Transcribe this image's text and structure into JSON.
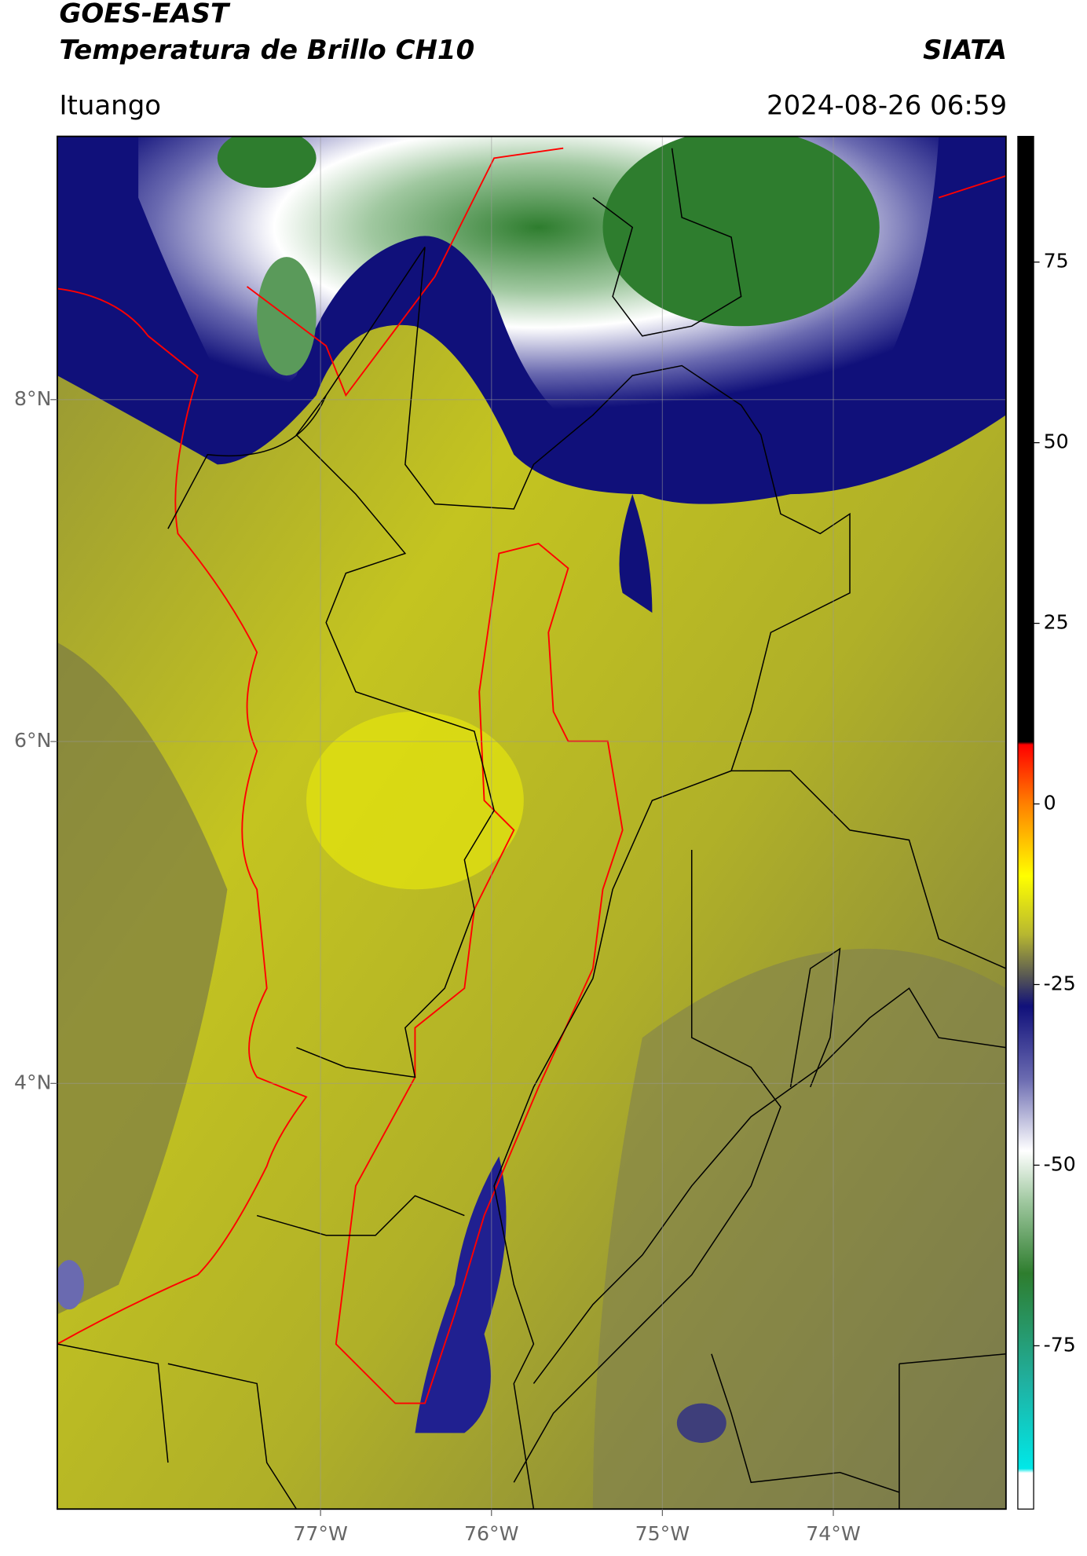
{
  "header": {
    "title": "GOES-EAST",
    "subtitle": "Temperatura de Brillo CH10",
    "source": "SIATA",
    "location": "Ituango",
    "datetime": "2024-08-26 06:59"
  },
  "map": {
    "lonlim": [
      -78.54,
      -72.99
    ],
    "latlim": [
      1.51,
      9.54
    ],
    "lonticks": [
      {
        "value": -77,
        "label": "77°W"
      },
      {
        "value": -76,
        "label": "76°W"
      },
      {
        "value": -75,
        "label": "75°W"
      },
      {
        "value": -74,
        "label": "74°W"
      }
    ],
    "latticks": [
      {
        "value": 8,
        "label": "8°N"
      },
      {
        "value": 6,
        "label": "6°N"
      },
      {
        "value": 4,
        "label": "4°N"
      }
    ],
    "grid": true
  },
  "colorbar": {
    "lim": [
      -97.6,
      92.4
    ],
    "ticks": [
      75,
      50,
      25,
      0,
      -25,
      -50,
      -75
    ],
    "stops": [
      {
        "value": 92.4,
        "color": "#000000"
      },
      {
        "value": 8.6,
        "color": "#000000"
      },
      {
        "value": 8.2,
        "color": "#ff0000"
      },
      {
        "value": 0,
        "color": "#ff8000"
      },
      {
        "value": -10,
        "color": "#ffff00"
      },
      {
        "value": -18,
        "color": "#b8b830"
      },
      {
        "value": -24,
        "color": "#555555"
      },
      {
        "value": -28,
        "color": "#10107a"
      },
      {
        "value": -38,
        "color": "#6a6ab0"
      },
      {
        "value": -48,
        "color": "#ffffff"
      },
      {
        "value": -55,
        "color": "#a0c8a0"
      },
      {
        "value": -65,
        "color": "#2e7d2e"
      },
      {
        "value": -80,
        "color": "#20b0a0"
      },
      {
        "value": -92,
        "color": "#00e8e8"
      },
      {
        "value": -92.6,
        "color": "#ffffff"
      },
      {
        "value": -97.6,
        "color": "#ffffff"
      }
    ]
  }
}
